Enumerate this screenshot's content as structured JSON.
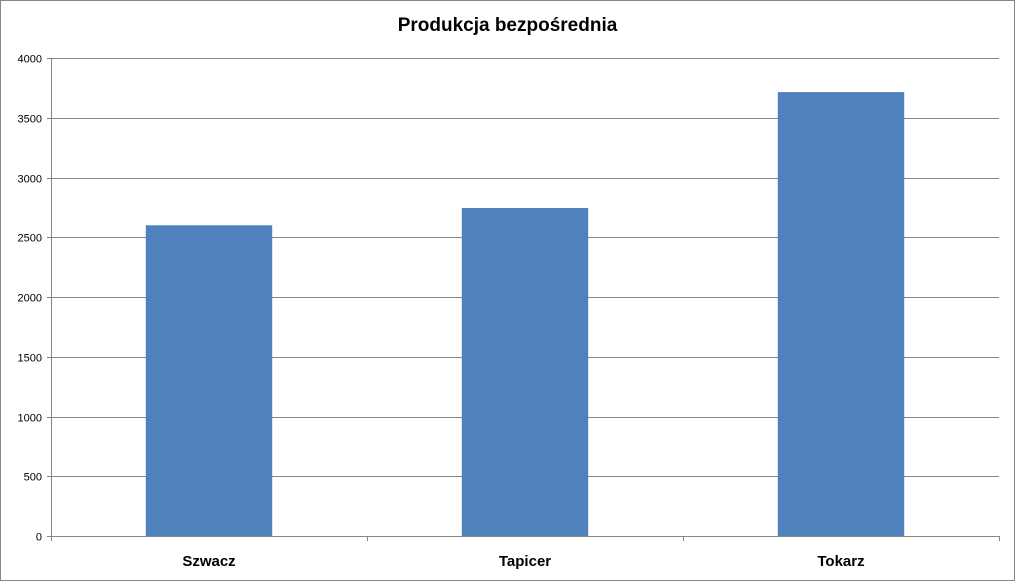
{
  "chart_data": {
    "type": "bar",
    "title": "Produkcja bezpośrednia",
    "xlabel": "",
    "ylabel": "",
    "categories": [
      "Szwacz",
      "Tapicer",
      "Tokarz"
    ],
    "values": [
      2600,
      2745,
      3715
    ],
    "ylim": [
      0,
      4000
    ],
    "yticks": [
      0,
      500,
      1000,
      1500,
      2000,
      2500,
      3000,
      3500,
      4000
    ],
    "grid": true,
    "legend": "none",
    "bar_color": "#4F81BD",
    "grid_color": "#868686"
  }
}
